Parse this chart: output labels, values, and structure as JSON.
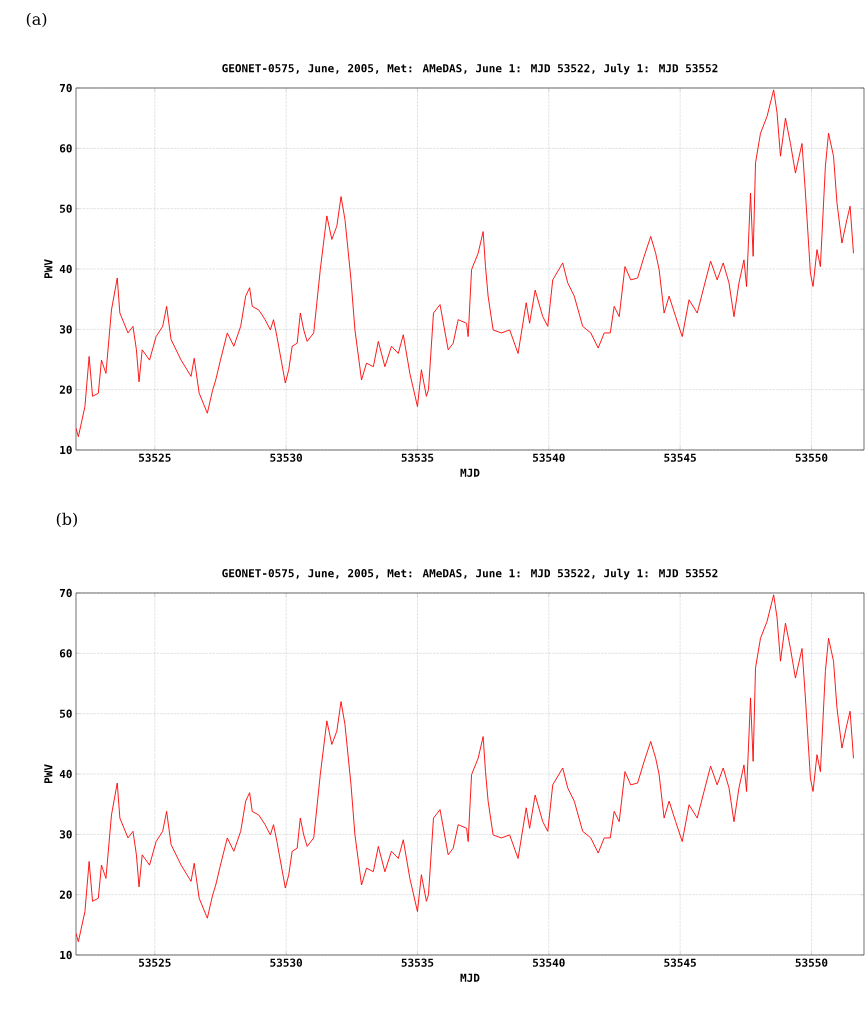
{
  "chart_data": [
    {
      "type": "line",
      "title": "GEONET-0575, June, 2005, Met: AMeDAS, June 1: MJD 53522, July 1: MJD 53552",
      "xlabel": "MJD",
      "ylabel": "PWV",
      "annotations": [
        "(a)"
      ],
      "grid": true,
      "xlim": [
        53522,
        53552
      ],
      "ylim": [
        10,
        70
      ],
      "xticks": [
        53525,
        53530,
        53535,
        53540,
        53545,
        53550
      ],
      "yticks": [
        10,
        20,
        30,
        40,
        50,
        60,
        70
      ],
      "series": [
        {
          "color": "#ff0000",
          "x": [
            53522.0,
            53522.09,
            53522.34,
            53522.5,
            53522.63,
            53522.85,
            53522.97,
            53523.14,
            53523.35,
            53523.57,
            53523.67,
            53523.98,
            53524.17,
            53524.3,
            53524.4,
            53524.52,
            53524.8,
            53525.05,
            53525.3,
            53525.45,
            53525.62,
            53526.0,
            53526.38,
            53526.5,
            53526.69,
            53527.0,
            53527.2,
            53527.32,
            53527.5,
            53527.76,
            53528.01,
            53528.27,
            53528.46,
            53528.61,
            53528.71,
            53528.96,
            53529.2,
            53529.4,
            53529.52,
            53529.65,
            53529.97,
            53530.1,
            53530.23,
            53530.42,
            53530.54,
            53530.67,
            53530.8,
            53531.05,
            53531.3,
            53531.55,
            53531.74,
            53531.93,
            53532.09,
            53532.24,
            53532.47,
            53532.62,
            53532.87,
            53533.06,
            53533.32,
            53533.51,
            53533.76,
            53534.01,
            53534.27,
            53534.46,
            53534.71,
            53535.0,
            53535.15,
            53535.34,
            53535.42,
            53535.61,
            53535.86,
            53536.17,
            53536.36,
            53536.55,
            53536.87,
            53536.93,
            53537.06,
            53537.31,
            53537.5,
            53537.59,
            53537.69,
            53537.88,
            53538.19,
            53538.51,
            53538.83,
            53539.14,
            53539.27,
            53539.48,
            53539.77,
            53539.96,
            53540.15,
            53540.53,
            53540.72,
            53540.97,
            53541.29,
            53541.6,
            53541.88,
            53542.11,
            53542.34,
            53542.49,
            53542.68,
            53542.9,
            53543.12,
            53543.38,
            53543.63,
            53543.88,
            53544.07,
            53544.2,
            53544.39,
            53544.58,
            53544.83,
            53545.08,
            53545.34,
            53545.65,
            53545.91,
            53546.16,
            53546.41,
            53546.64,
            53546.86,
            53547.05,
            53547.24,
            53547.43,
            53547.53,
            53547.68,
            53547.78,
            53547.87,
            53548.06,
            53548.31,
            53548.56,
            53548.69,
            53548.82,
            53549.01,
            53549.2,
            53549.39,
            53549.64,
            53549.77,
            53549.96,
            53550.06,
            53550.21,
            53550.34,
            53550.53,
            53550.65,
            53550.84,
            53550.97,
            53551.16,
            53551.35,
            53551.47,
            53551.6
          ],
          "values": [
            13.6,
            12.2,
            17.2,
            25.5,
            18.9,
            19.4,
            24.9,
            22.7,
            33.2,
            38.5,
            32.7,
            29.4,
            30.5,
            26.6,
            21.3,
            26.6,
            24.9,
            28.8,
            30.5,
            33.8,
            28.3,
            24.9,
            22.2,
            25.2,
            19.4,
            16.1,
            19.9,
            21.6,
            24.9,
            29.4,
            27.2,
            30.5,
            35.5,
            36.9,
            33.8,
            33.2,
            31.6,
            29.9,
            31.6,
            28.8,
            21.1,
            23.3,
            27.2,
            27.7,
            32.7,
            29.9,
            28.0,
            29.4,
            39.9,
            48.8,
            44.9,
            47.1,
            52.0,
            48.2,
            38.2,
            29.9,
            21.6,
            24.4,
            23.8,
            28.0,
            23.8,
            27.2,
            26.0,
            29.1,
            22.7,
            17.2,
            23.3,
            18.9,
            20.0,
            32.7,
            34.1,
            26.6,
            27.7,
            31.6,
            31.0,
            28.8,
            39.9,
            42.6,
            46.2,
            40.4,
            35.5,
            29.9,
            29.4,
            29.9,
            26.0,
            34.4,
            31.0,
            36.5,
            32.1,
            30.5,
            38.2,
            41.0,
            37.7,
            35.5,
            30.5,
            29.4,
            26.9,
            29.4,
            29.4,
            33.8,
            32.1,
            40.4,
            38.2,
            38.5,
            42.1,
            45.4,
            42.6,
            39.9,
            32.7,
            35.5,
            32.1,
            28.8,
            34.9,
            32.7,
            37.1,
            41.3,
            38.2,
            41.0,
            37.7,
            32.1,
            37.7,
            41.5,
            37.1,
            52.6,
            42.1,
            57.6,
            62.5,
            65.3,
            69.7,
            65.9,
            58.7,
            65.0,
            60.8,
            55.9,
            60.8,
            52.6,
            39.3,
            37.1,
            43.2,
            40.4,
            57.0,
            62.5,
            58.7,
            51.0,
            44.3,
            48.2,
            50.4,
            42.6
          ]
        }
      ]
    },
    {
      "type": "line",
      "title": "GEONET-0575, June, 2005, Met: AMeDAS, June 1: MJD 53522, July 1: MJD 53552",
      "xlabel": "MJD",
      "ylabel": "PWV",
      "annotations": [
        "(b)"
      ],
      "grid": true,
      "xlim": [
        53522,
        53552
      ],
      "ylim": [
        10,
        70
      ],
      "xticks": [
        53525,
        53530,
        53535,
        53540,
        53545,
        53550
      ],
      "yticks": [
        10,
        20,
        30,
        40,
        50,
        60,
        70
      ],
      "series": [
        {
          "color": "#ff0000",
          "x": [
            53522.0,
            53522.09,
            53522.34,
            53522.5,
            53522.63,
            53522.85,
            53522.97,
            53523.14,
            53523.35,
            53523.57,
            53523.67,
            53523.98,
            53524.17,
            53524.3,
            53524.4,
            53524.52,
            53524.8,
            53525.05,
            53525.3,
            53525.45,
            53525.62,
            53526.0,
            53526.38,
            53526.5,
            53526.69,
            53527.0,
            53527.2,
            53527.32,
            53527.5,
            53527.76,
            53528.01,
            53528.27,
            53528.46,
            53528.61,
            53528.71,
            53528.96,
            53529.2,
            53529.4,
            53529.52,
            53529.65,
            53529.97,
            53530.1,
            53530.23,
            53530.42,
            53530.54,
            53530.67,
            53530.8,
            53531.05,
            53531.3,
            53531.55,
            53531.74,
            53531.93,
            53532.09,
            53532.24,
            53532.47,
            53532.62,
            53532.87,
            53533.06,
            53533.32,
            53533.51,
            53533.76,
            53534.01,
            53534.27,
            53534.46,
            53534.71,
            53535.0,
            53535.15,
            53535.34,
            53535.42,
            53535.61,
            53535.86,
            53536.17,
            53536.36,
            53536.55,
            53536.87,
            53536.93,
            53537.06,
            53537.31,
            53537.5,
            53537.59,
            53537.69,
            53537.88,
            53538.19,
            53538.51,
            53538.83,
            53539.14,
            53539.27,
            53539.48,
            53539.77,
            53539.96,
            53540.15,
            53540.53,
            53540.72,
            53540.97,
            53541.29,
            53541.6,
            53541.88,
            53542.11,
            53542.34,
            53542.49,
            53542.68,
            53542.9,
            53543.12,
            53543.38,
            53543.63,
            53543.88,
            53544.07,
            53544.2,
            53544.39,
            53544.58,
            53544.83,
            53545.08,
            53545.34,
            53545.65,
            53545.91,
            53546.16,
            53546.41,
            53546.64,
            53546.86,
            53547.05,
            53547.24,
            53547.43,
            53547.53,
            53547.68,
            53547.78,
            53547.87,
            53548.06,
            53548.31,
            53548.56,
            53548.69,
            53548.82,
            53549.01,
            53549.2,
            53549.39,
            53549.64,
            53549.77,
            53549.96,
            53550.06,
            53550.21,
            53550.34,
            53550.53,
            53550.65,
            53550.84,
            53550.97,
            53551.16,
            53551.35,
            53551.47,
            53551.6
          ],
          "values": [
            13.6,
            12.2,
            17.2,
            25.5,
            18.9,
            19.4,
            24.9,
            22.7,
            33.2,
            38.5,
            32.7,
            29.4,
            30.5,
            26.6,
            21.3,
            26.6,
            24.9,
            28.8,
            30.5,
            33.8,
            28.3,
            24.9,
            22.2,
            25.2,
            19.4,
            16.1,
            19.9,
            21.6,
            24.9,
            29.4,
            27.2,
            30.5,
            35.5,
            36.9,
            33.8,
            33.2,
            31.6,
            29.9,
            31.6,
            28.8,
            21.1,
            23.3,
            27.2,
            27.7,
            32.7,
            29.9,
            28.0,
            29.4,
            39.9,
            48.8,
            44.9,
            47.1,
            52.0,
            48.2,
            38.2,
            29.9,
            21.6,
            24.4,
            23.8,
            28.0,
            23.8,
            27.2,
            26.0,
            29.1,
            22.7,
            17.2,
            23.3,
            18.9,
            20.0,
            32.7,
            34.1,
            26.6,
            27.7,
            31.6,
            31.0,
            28.8,
            39.9,
            42.6,
            46.2,
            40.4,
            35.5,
            29.9,
            29.4,
            29.9,
            26.0,
            34.4,
            31.0,
            36.5,
            32.1,
            30.5,
            38.2,
            41.0,
            37.7,
            35.5,
            30.5,
            29.4,
            26.9,
            29.4,
            29.4,
            33.8,
            32.1,
            40.4,
            38.2,
            38.5,
            42.1,
            45.4,
            42.6,
            39.9,
            32.7,
            35.5,
            32.1,
            28.8,
            34.9,
            32.7,
            37.1,
            41.3,
            38.2,
            41.0,
            37.7,
            32.1,
            37.7,
            41.5,
            37.1,
            52.6,
            42.1,
            57.6,
            62.5,
            65.3,
            69.7,
            65.9,
            58.7,
            65.0,
            60.8,
            55.9,
            60.8,
            52.6,
            39.3,
            37.1,
            43.2,
            40.4,
            57.0,
            62.5,
            58.7,
            51.0,
            44.3,
            48.2,
            50.4,
            42.6
          ]
        }
      ]
    }
  ]
}
